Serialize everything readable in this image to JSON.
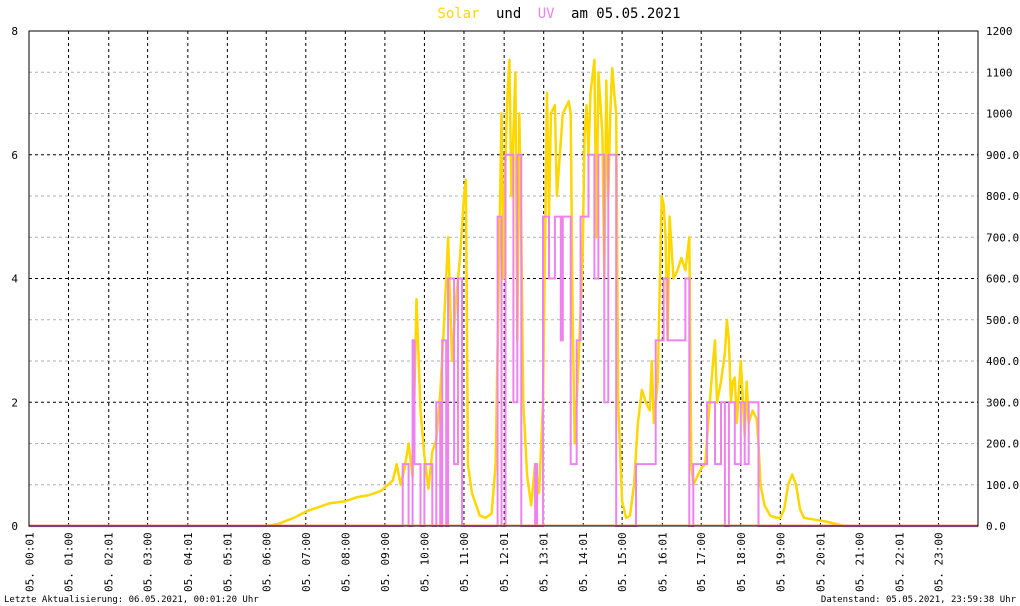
{
  "title": {
    "part1": "Solar",
    "part2": "und",
    "part3": "UV",
    "part4": "am 05.05.2021"
  },
  "colors": {
    "solar": "#ffd700",
    "uv": "#ee82ee",
    "grid": "#000000",
    "minor_grid": "#b0b0b0",
    "frame": "#000000"
  },
  "footer": {
    "left": "Letzte Aktualisierung: 06.05.2021, 00:01:20 Uhr",
    "right": "Datenstand: 05.05.2021, 23:59:38 Uhr"
  },
  "chart_data": {
    "type": "line",
    "x_unit": "hour",
    "xlim": [
      0,
      24
    ],
    "y_left_lim": [
      0,
      8
    ],
    "y_right_lim": [
      0,
      1200
    ],
    "y_left_ticks": [
      "0",
      "2",
      "4",
      "6",
      "8"
    ],
    "y_right_ticks": [
      "0.0",
      "100.0",
      "200.0",
      "300.0",
      "400.0",
      "500.0",
      "600.0",
      "700.0",
      "800.0",
      "900.0",
      "1000",
      "1100",
      "1200"
    ],
    "x_tick_labels": [
      {
        "x": 0.0167,
        "label": "05. 00:01"
      },
      {
        "x": 1,
        "label": "05. 01:00"
      },
      {
        "x": 2.0167,
        "label": "05. 02:01"
      },
      {
        "x": 3,
        "label": "05. 03:00"
      },
      {
        "x": 4.0167,
        "label": "05. 04:01"
      },
      {
        "x": 5.0167,
        "label": "05. 05:01"
      },
      {
        "x": 6,
        "label": "05. 06:00"
      },
      {
        "x": 7,
        "label": "05. 07:00"
      },
      {
        "x": 8,
        "label": "05. 08:00"
      },
      {
        "x": 9,
        "label": "05. 09:00"
      },
      {
        "x": 10,
        "label": "05. 10:00"
      },
      {
        "x": 11,
        "label": "05. 11:00"
      },
      {
        "x": 12.0167,
        "label": "05. 12:01"
      },
      {
        "x": 13.0167,
        "label": "05. 13:01"
      },
      {
        "x": 14.0167,
        "label": "05. 14:01"
      },
      {
        "x": 15,
        "label": "05. 15:00"
      },
      {
        "x": 16.0167,
        "label": "05. 16:01"
      },
      {
        "x": 17,
        "label": "05. 17:00"
      },
      {
        "x": 18,
        "label": "05. 18:00"
      },
      {
        "x": 19,
        "label": "05. 19:00"
      },
      {
        "x": 20.0167,
        "label": "05. 20:01"
      },
      {
        "x": 21,
        "label": "05. 21:00"
      },
      {
        "x": 22.0167,
        "label": "05. 22:01"
      },
      {
        "x": 23,
        "label": "05. 23:00"
      }
    ],
    "series": [
      {
        "name": "Solar",
        "axis": "right",
        "points": [
          [
            0,
            0
          ],
          [
            6,
            0
          ],
          [
            6.3,
            5
          ],
          [
            6.7,
            20
          ],
          [
            7,
            35
          ],
          [
            7.3,
            45
          ],
          [
            7.6,
            55
          ],
          [
            8,
            60
          ],
          [
            8.3,
            70
          ],
          [
            8.6,
            75
          ],
          [
            8.9,
            85
          ],
          [
            9.2,
            110
          ],
          [
            9.3,
            150
          ],
          [
            9.4,
            100
          ],
          [
            9.5,
            140
          ],
          [
            9.6,
            200
          ],
          [
            9.7,
            120
          ],
          [
            9.8,
            550
          ],
          [
            9.9,
            280
          ],
          [
            10,
            170
          ],
          [
            10.1,
            90
          ],
          [
            10.2,
            180
          ],
          [
            10.3,
            210
          ],
          [
            10.4,
            320
          ],
          [
            10.5,
            500
          ],
          [
            10.6,
            700
          ],
          [
            10.7,
            400
          ],
          [
            10.8,
            550
          ],
          [
            10.9,
            650
          ],
          [
            11,
            800
          ],
          [
            11.05,
            840
          ],
          [
            11.1,
            150
          ],
          [
            11.2,
            80
          ],
          [
            11.4,
            25
          ],
          [
            11.55,
            20
          ],
          [
            11.7,
            30
          ],
          [
            11.8,
            150
          ],
          [
            11.9,
            700
          ],
          [
            11.95,
            1000
          ],
          [
            12,
            600
          ],
          [
            12.05,
            900
          ],
          [
            12.1,
            1050
          ],
          [
            12.15,
            1130
          ],
          [
            12.2,
            800
          ],
          [
            12.3,
            1100
          ],
          [
            12.35,
            450
          ],
          [
            12.4,
            1000
          ],
          [
            12.45,
            700
          ],
          [
            12.5,
            300
          ],
          [
            12.6,
            120
          ],
          [
            12.7,
            50
          ],
          [
            12.8,
            150
          ],
          [
            12.9,
            80
          ],
          [
            13.0,
            300
          ],
          [
            13.1,
            1050
          ],
          [
            13.15,
            750
          ],
          [
            13.2,
            1000
          ],
          [
            13.3,
            1020
          ],
          [
            13.35,
            800
          ],
          [
            13.5,
            1000
          ],
          [
            13.6,
            1020
          ],
          [
            13.65,
            1030
          ],
          [
            13.7,
            1000
          ],
          [
            13.75,
            500
          ],
          [
            13.8,
            200
          ],
          [
            13.9,
            400
          ],
          [
            14.0,
            650
          ],
          [
            14.05,
            950
          ],
          [
            14.1,
            1020
          ],
          [
            14.15,
            900
          ],
          [
            14.2,
            1050
          ],
          [
            14.3,
            1130
          ],
          [
            14.35,
            700
          ],
          [
            14.4,
            1100
          ],
          [
            14.5,
            950
          ],
          [
            14.55,
            600
          ],
          [
            14.6,
            1080
          ],
          [
            14.65,
            800
          ],
          [
            14.7,
            1000
          ],
          [
            14.75,
            1110
          ],
          [
            14.8,
            1050
          ],
          [
            14.85,
            1000
          ],
          [
            14.9,
            300
          ],
          [
            15.0,
            60
          ],
          [
            15.1,
            20
          ],
          [
            15.2,
            25
          ],
          [
            15.3,
            100
          ],
          [
            15.4,
            250
          ],
          [
            15.5,
            330
          ],
          [
            15.6,
            300
          ],
          [
            15.7,
            280
          ],
          [
            15.75,
            400
          ],
          [
            15.8,
            250
          ],
          [
            15.9,
            350
          ],
          [
            16.0,
            800
          ],
          [
            16.05,
            780
          ],
          [
            16.1,
            700
          ],
          [
            16.15,
            450
          ],
          [
            16.2,
            750
          ],
          [
            16.3,
            600
          ],
          [
            16.4,
            620
          ],
          [
            16.5,
            650
          ],
          [
            16.6,
            620
          ],
          [
            16.7,
            700
          ],
          [
            16.75,
            150
          ],
          [
            16.8,
            100
          ],
          [
            16.9,
            120
          ],
          [
            17.0,
            140
          ],
          [
            17.1,
            150
          ],
          [
            17.2,
            280
          ],
          [
            17.3,
            400
          ],
          [
            17.35,
            450
          ],
          [
            17.4,
            300
          ],
          [
            17.5,
            350
          ],
          [
            17.6,
            420
          ],
          [
            17.65,
            500
          ],
          [
            17.7,
            450
          ],
          [
            17.75,
            300
          ],
          [
            17.8,
            350
          ],
          [
            17.85,
            360
          ],
          [
            17.9,
            250
          ],
          [
            18.0,
            400
          ],
          [
            18.1,
            220
          ],
          [
            18.15,
            350
          ],
          [
            18.2,
            250
          ],
          [
            18.3,
            280
          ],
          [
            18.4,
            260
          ],
          [
            18.45,
            200
          ],
          [
            18.5,
            100
          ],
          [
            18.6,
            50
          ],
          [
            18.75,
            25
          ],
          [
            18.9,
            20
          ],
          [
            19.0,
            20
          ],
          [
            19.1,
            40
          ],
          [
            19.2,
            100
          ],
          [
            19.3,
            125
          ],
          [
            19.4,
            100
          ],
          [
            19.5,
            40
          ],
          [
            19.6,
            20
          ],
          [
            19.9,
            15
          ],
          [
            20.2,
            10
          ],
          [
            20.5,
            3
          ],
          [
            20.6,
            0
          ],
          [
            24,
            0
          ]
        ]
      },
      {
        "name": "UV",
        "axis": "left",
        "steps": [
          [
            0,
            0
          ],
          [
            9.45,
            0
          ],
          [
            9.45,
            1
          ],
          [
            9.6,
            1
          ],
          [
            9.6,
            0
          ],
          [
            9.7,
            0
          ],
          [
            9.7,
            3
          ],
          [
            9.75,
            3
          ],
          [
            9.75,
            1
          ],
          [
            9.9,
            1
          ],
          [
            9.9,
            0
          ],
          [
            10.0,
            0
          ],
          [
            10.0,
            1
          ],
          [
            10.2,
            1
          ],
          [
            10.2,
            0
          ],
          [
            10.3,
            0
          ],
          [
            10.3,
            2
          ],
          [
            10.4,
            2
          ],
          [
            10.4,
            0
          ],
          [
            10.45,
            0
          ],
          [
            10.45,
            3
          ],
          [
            10.55,
            3
          ],
          [
            10.55,
            0
          ],
          [
            10.6,
            0
          ],
          [
            10.6,
            4
          ],
          [
            10.75,
            4
          ],
          [
            10.75,
            1
          ],
          [
            10.85,
            1
          ],
          [
            10.85,
            4
          ],
          [
            10.95,
            4
          ],
          [
            10.95,
            0
          ],
          [
            11.85,
            0
          ],
          [
            11.85,
            5
          ],
          [
            11.95,
            5
          ],
          [
            11.95,
            0
          ],
          [
            12.05,
            0
          ],
          [
            12.05,
            6
          ],
          [
            12.25,
            6
          ],
          [
            12.25,
            2
          ],
          [
            12.35,
            2
          ],
          [
            12.35,
            6
          ],
          [
            12.45,
            6
          ],
          [
            12.45,
            0
          ],
          [
            12.8,
            0
          ],
          [
            12.8,
            1
          ],
          [
            12.85,
            1
          ],
          [
            12.85,
            0
          ],
          [
            13.0,
            0
          ],
          [
            13.0,
            5
          ],
          [
            13.15,
            5
          ],
          [
            13.15,
            4
          ],
          [
            13.3,
            4
          ],
          [
            13.3,
            5
          ],
          [
            13.45,
            5
          ],
          [
            13.45,
            3
          ],
          [
            13.5,
            3
          ],
          [
            13.5,
            5
          ],
          [
            13.7,
            5
          ],
          [
            13.7,
            1
          ],
          [
            13.85,
            1
          ],
          [
            13.85,
            3
          ],
          [
            13.95,
            3
          ],
          [
            13.95,
            5
          ],
          [
            14.15,
            5
          ],
          [
            14.15,
            6
          ],
          [
            14.3,
            6
          ],
          [
            14.3,
            4
          ],
          [
            14.4,
            4
          ],
          [
            14.4,
            6
          ],
          [
            14.55,
            6
          ],
          [
            14.55,
            2
          ],
          [
            14.65,
            2
          ],
          [
            14.65,
            6
          ],
          [
            14.85,
            6
          ],
          [
            14.85,
            0
          ],
          [
            15.35,
            0
          ],
          [
            15.35,
            1
          ],
          [
            15.85,
            1
          ],
          [
            15.85,
            3
          ],
          [
            16.05,
            3
          ],
          [
            16.05,
            4
          ],
          [
            16.15,
            4
          ],
          [
            16.15,
            3
          ],
          [
            16.6,
            3
          ],
          [
            16.6,
            4
          ],
          [
            16.7,
            4
          ],
          [
            16.7,
            0
          ],
          [
            16.8,
            0
          ],
          [
            16.8,
            1
          ],
          [
            17.15,
            1
          ],
          [
            17.15,
            2
          ],
          [
            17.35,
            2
          ],
          [
            17.35,
            1
          ],
          [
            17.5,
            1
          ],
          [
            17.5,
            2
          ],
          [
            17.6,
            2
          ],
          [
            17.6,
            0
          ],
          [
            17.7,
            0
          ],
          [
            17.7,
            2
          ],
          [
            17.85,
            2
          ],
          [
            17.85,
            1
          ],
          [
            18.0,
            1
          ],
          [
            18.0,
            2
          ],
          [
            18.1,
            2
          ],
          [
            18.1,
            1
          ],
          [
            18.2,
            1
          ],
          [
            18.2,
            2
          ],
          [
            18.45,
            2
          ],
          [
            18.45,
            0
          ],
          [
            24,
            0
          ]
        ]
      }
    ]
  }
}
